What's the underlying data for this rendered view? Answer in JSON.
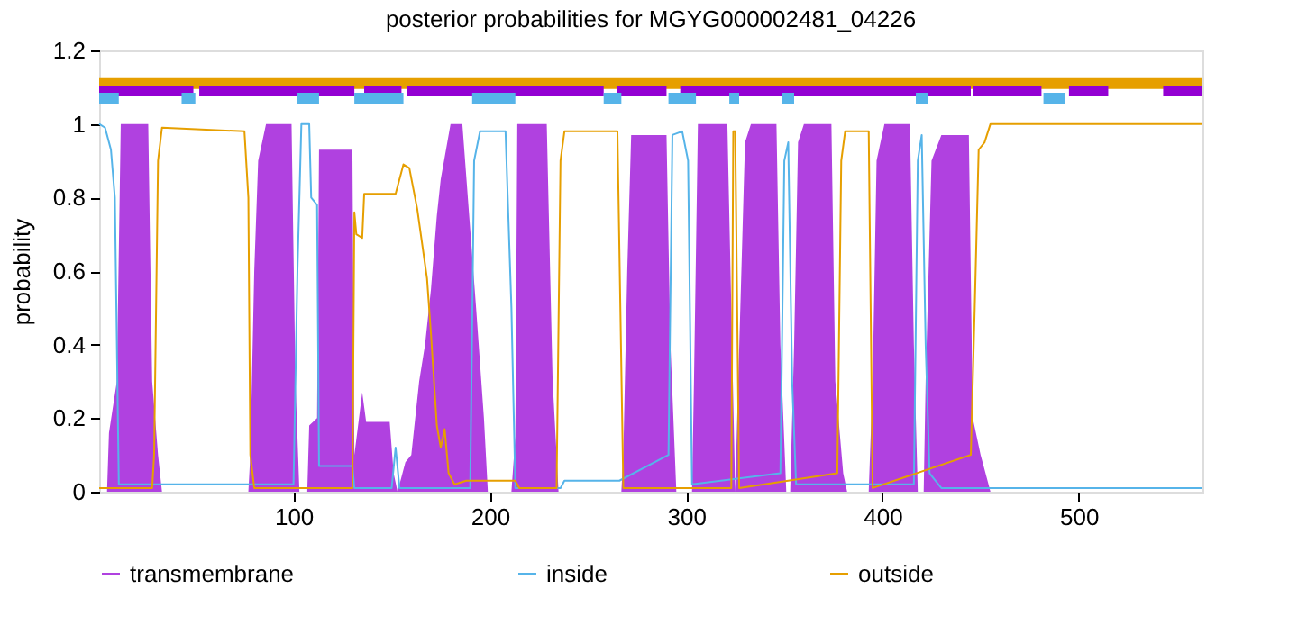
{
  "chart_data": {
    "type": "line",
    "title": "posterior probabilities for MGYG000002481_04226",
    "ylabel": "probability",
    "xlim": [
      1,
      563
    ],
    "ylim": [
      0,
      1.2
    ],
    "xticks": [
      100,
      200,
      300,
      400,
      500
    ],
    "yticks": [
      0,
      0.2,
      0.4,
      0.6,
      0.8,
      1,
      1.2
    ],
    "grid": false,
    "legend": "bottom",
    "series": [
      {
        "name": "transmembrane",
        "type": "area",
        "color": "#b041e0",
        "x": [
          1,
          5,
          6,
          10,
          12,
          26,
          28,
          31,
          33,
          77,
          78,
          80,
          82,
          86,
          99,
          101,
          103,
          107,
          108,
          112,
          113,
          130,
          131,
          135,
          137,
          149,
          151,
          153,
          157,
          160,
          164,
          167,
          170,
          173,
          175,
          180,
          186,
          193,
          197,
          199,
          211,
          213,
          214,
          229,
          232,
          235,
          267,
          268,
          270,
          272,
          290,
          292,
          295,
          303,
          304,
          306,
          321,
          323,
          325,
          326,
          330,
          333,
          346,
          348,
          351,
          353,
          355,
          357,
          360,
          374,
          376,
          380,
          382,
          393,
          395,
          397,
          401,
          414,
          416,
          418,
          421,
          422,
          425,
          430,
          444,
          446,
          450,
          454,
          455,
          563
        ],
        "values": [
          0,
          0,
          0.16,
          0.3,
          1,
          1,
          0.3,
          0.1,
          0,
          0,
          0.1,
          0.6,
          0.9,
          1,
          1,
          0.3,
          0,
          0,
          0.18,
          0.2,
          0.93,
          0.93,
          0.1,
          0.27,
          0.19,
          0.19,
          0.05,
          0,
          0.08,
          0.1,
          0.3,
          0.4,
          0.55,
          0.75,
          0.85,
          1,
          1,
          0.5,
          0.2,
          0,
          0,
          0.15,
          1,
          1,
          0.3,
          0,
          0,
          0.1,
          0.6,
          0.97,
          0.97,
          0.4,
          0,
          0,
          0.3,
          1,
          1,
          0.5,
          0,
          0.2,
          0.95,
          1,
          1,
          0.4,
          0,
          0,
          0.4,
          0.95,
          1,
          1,
          0.3,
          0.05,
          0,
          0,
          0.3,
          0.9,
          1,
          1,
          0.4,
          0,
          0,
          0.3,
          0.9,
          0.97,
          0.97,
          0.2,
          0.1,
          0.02,
          0,
          0
        ]
      },
      {
        "name": "inside",
        "color": "#56b4e9",
        "x": [
          1,
          4,
          7,
          9,
          11,
          100,
          102,
          104,
          108,
          109,
          112,
          113,
          130,
          131,
          150,
          152,
          154,
          190,
          192,
          195,
          208,
          211,
          213,
          236,
          238,
          266,
          291,
          293,
          298,
          301,
          303,
          348,
          350,
          352,
          354,
          356,
          416,
          418,
          420,
          422,
          424,
          430,
          563
        ],
        "values": [
          1,
          0.99,
          0.93,
          0.8,
          0.02,
          0.02,
          0.6,
          1,
          1,
          0.8,
          0.78,
          0.07,
          0.07,
          0.01,
          0.01,
          0.12,
          0.01,
          0.01,
          0.9,
          0.98,
          0.98,
          0.5,
          0.01,
          0.01,
          0.03,
          0.03,
          0.1,
          0.97,
          0.98,
          0.9,
          0.02,
          0.05,
          0.9,
          0.95,
          0.3,
          0.02,
          0.02,
          0.9,
          0.97,
          0.4,
          0.05,
          0.01,
          0.01
        ]
      },
      {
        "name": "outside",
        "color": "#e69f00",
        "x": [
          1,
          28,
          29,
          31,
          33,
          75,
          77,
          78,
          80,
          130,
          131,
          132,
          135,
          136,
          152,
          156,
          159,
          163,
          168,
          170,
          173,
          175,
          177,
          179,
          182,
          188,
          213,
          215,
          234,
          236,
          238,
          265,
          268,
          323,
          324,
          325,
          327,
          377,
          379,
          381,
          393,
          395,
          445,
          447,
          449,
          452,
          455,
          563
        ],
        "values": [
          0.01,
          0.01,
          0.1,
          0.9,
          0.99,
          0.98,
          0.8,
          0.1,
          0.01,
          0.01,
          0.76,
          0.7,
          0.69,
          0.81,
          0.81,
          0.89,
          0.88,
          0.77,
          0.58,
          0.43,
          0.18,
          0.12,
          0.17,
          0.05,
          0.02,
          0.03,
          0.03,
          0.01,
          0.01,
          0.9,
          0.98,
          0.98,
          0.01,
          0.01,
          0.98,
          0.98,
          0.01,
          0.05,
          0.9,
          0.98,
          0.98,
          0.01,
          0.1,
          0.5,
          0.93,
          0.95,
          1,
          1
        ]
      },
      {
        "color": "#e69f00",
        "x": [
          1,
          563
        ],
        "values": [
          1.11,
          1.11
        ]
      },
      {
        "color": "#9400d3",
        "x": [
          1,
          49,
          50,
          52,
          131,
          133,
          136,
          155,
          156,
          158,
          258,
          260,
          265,
          290,
          293,
          297,
          445,
          445.5,
          446,
          481,
          485,
          495,
          515,
          520,
          543,
          563
        ],
        "values": [
          1.09,
          1.09,
          null,
          1.09,
          1.09,
          null,
          1.09,
          1.09,
          null,
          1.09,
          1.09,
          null,
          1.09,
          1.09,
          null,
          1.09,
          1.09,
          null,
          1.09,
          1.09,
          null,
          1.09,
          1.09,
          null,
          1.09,
          1.09
        ]
      },
      {
        "color": "#56b4e9",
        "x": [
          1,
          11,
          20,
          43,
          50,
          60,
          102,
          113,
          120,
          131,
          156,
          170,
          191,
          213,
          240,
          258,
          267,
          280,
          291,
          305,
          315,
          322,
          327,
          340,
          349,
          355,
          400,
          417,
          423,
          450,
          482,
          493
        ],
        "values": [
          1.07,
          1.07,
          null,
          1.07,
          1.07,
          null,
          1.07,
          1.07,
          null,
          1.07,
          1.07,
          null,
          1.07,
          1.07,
          null,
          1.07,
          1.07,
          null,
          1.07,
          1.07,
          null,
          1.07,
          1.07,
          null,
          1.07,
          1.07,
          null,
          1.07,
          1.07,
          null,
          1.07,
          1.07
        ]
      }
    ]
  }
}
